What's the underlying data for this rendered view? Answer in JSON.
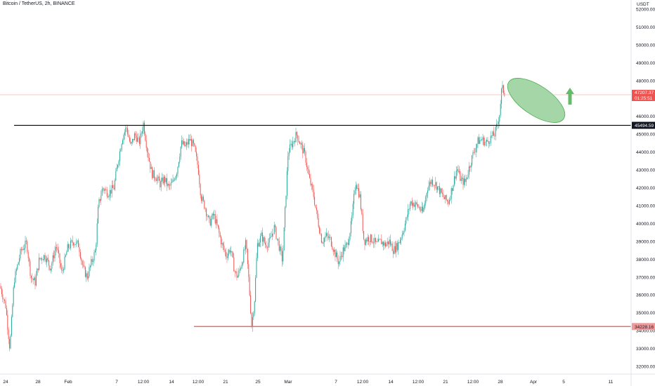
{
  "header": {
    "title": "Bitcoin / TetherUS, 2h, BINANCE"
  },
  "price_axis": {
    "unit": "USDT"
  },
  "chart_data": {
    "type": "candlestick",
    "title": "Bitcoin / TetherUS, 2h, BINANCE",
    "ylim": [
      31700,
      52300
    ],
    "y_ticks": [
      32000,
      33000,
      34000,
      35000,
      36000,
      37000,
      38000,
      39000,
      40000,
      41000,
      42000,
      43000,
      44000,
      45000,
      46000,
      47000,
      48000,
      49000,
      50000,
      51000,
      52000
    ],
    "x_tick_labels": [
      "24",
      "28",
      "Feb",
      "7",
      "12:00",
      "14",
      "12:00",
      "21",
      "25",
      "Mar",
      "7",
      "12:00",
      "14",
      "12:00",
      "21",
      "12:00",
      "28",
      "Apr",
      "5",
      "11"
    ],
    "series_path": [
      [
        0,
        36500
      ],
      [
        8,
        35400
      ],
      [
        14,
        33000
      ],
      [
        20,
        36800
      ],
      [
        30,
        38500
      ],
      [
        38,
        38900
      ],
      [
        44,
        37000
      ],
      [
        50,
        36700
      ],
      [
        56,
        38000
      ],
      [
        64,
        38200
      ],
      [
        72,
        37500
      ],
      [
        80,
        38800
      ],
      [
        88,
        37200
      ],
      [
        96,
        38600
      ],
      [
        104,
        39000
      ],
      [
        112,
        38800
      ],
      [
        118,
        37500
      ],
      [
        124,
        37000
      ],
      [
        130,
        37800
      ],
      [
        136,
        38500
      ],
      [
        140,
        41000
      ],
      [
        146,
        42000
      ],
      [
        154,
        41700
      ],
      [
        162,
        42000
      ],
      [
        168,
        43500
      ],
      [
        174,
        44800
      ],
      [
        180,
        45400
      ],
      [
        186,
        44300
      ],
      [
        192,
        45000
      ],
      [
        198,
        44500
      ],
      [
        204,
        45600
      ],
      [
        210,
        44000
      ],
      [
        216,
        42800
      ],
      [
        222,
        42600
      ],
      [
        228,
        42200
      ],
      [
        234,
        42500
      ],
      [
        240,
        42000
      ],
      [
        246,
        42300
      ],
      [
        252,
        43000
      ],
      [
        258,
        44500
      ],
      [
        264,
        44300
      ],
      [
        270,
        44700
      ],
      [
        276,
        44300
      ],
      [
        282,
        43100
      ],
      [
        286,
        41500
      ],
      [
        292,
        40900
      ],
      [
        298,
        40000
      ],
      [
        304,
        40500
      ],
      [
        310,
        39700
      ],
      [
        316,
        38800
      ],
      [
        322,
        38200
      ],
      [
        328,
        38600
      ],
      [
        334,
        37300
      ],
      [
        338,
        37000
      ],
      [
        344,
        37800
      ],
      [
        350,
        38900
      ],
      [
        354,
        36800
      ],
      [
        358,
        34300
      ],
      [
        362,
        35600
      ],
      [
        366,
        38800
      ],
      [
        372,
        39300
      ],
      [
        378,
        38800
      ],
      [
        384,
        39000
      ],
      [
        390,
        39800
      ],
      [
        396,
        38900
      ],
      [
        402,
        37900
      ],
      [
        406,
        41000
      ],
      [
        410,
        44000
      ],
      [
        416,
        44500
      ],
      [
        422,
        45000
      ],
      [
        428,
        44400
      ],
      [
        434,
        43800
      ],
      [
        440,
        42500
      ],
      [
        446,
        41600
      ],
      [
        452,
        40200
      ],
      [
        458,
        39000
      ],
      [
        464,
        39300
      ],
      [
        470,
        39100
      ],
      [
        476,
        38400
      ],
      [
        482,
        37800
      ],
      [
        488,
        38500
      ],
      [
        494,
        38800
      ],
      [
        500,
        40000
      ],
      [
        506,
        42400
      ],
      [
        512,
        41500
      ],
      [
        518,
        39000
      ],
      [
        524,
        39200
      ],
      [
        530,
        39100
      ],
      [
        536,
        38800
      ],
      [
        542,
        39000
      ],
      [
        548,
        38800
      ],
      [
        554,
        39000
      ],
      [
        560,
        38500
      ],
      [
        566,
        38800
      ],
      [
        572,
        39400
      ],
      [
        578,
        40200
      ],
      [
        584,
        41200
      ],
      [
        590,
        41100
      ],
      [
        596,
        40900
      ],
      [
        602,
        40600
      ],
      [
        608,
        42000
      ],
      [
        614,
        42400
      ],
      [
        620,
        42200
      ],
      [
        626,
        41800
      ],
      [
        632,
        41400
      ],
      [
        638,
        41200
      ],
      [
        644,
        42100
      ],
      [
        650,
        43100
      ],
      [
        656,
        42400
      ],
      [
        662,
        42300
      ],
      [
        668,
        43200
      ],
      [
        674,
        44000
      ],
      [
        680,
        44600
      ],
      [
        686,
        44700
      ],
      [
        692,
        44500
      ],
      [
        698,
        44800
      ],
      [
        704,
        45000
      ],
      [
        708,
        45600
      ],
      [
        711,
        46200
      ],
      [
        714,
        47600
      ],
      [
        718,
        47300
      ]
    ],
    "seed": 7,
    "overlays": {
      "current_price_line": {
        "value": 47207.37,
        "label": "47207.37",
        "countdown": "01:25:51"
      },
      "resistance_line": {
        "value": 45494.59,
        "label": "45494.59"
      },
      "support_line": {
        "value": 34228.16,
        "label": "34228.16"
      },
      "target_ellipse": {
        "color": "#a5d6a7",
        "stroke": "#4caf50"
      },
      "up_arrow": {
        "color": "#66bb6a",
        "icon": "up-arrow-icon"
      }
    },
    "colors": {
      "up": "#26a69a",
      "down": "#ef5350",
      "resistance": "#000000",
      "support": "#e57373",
      "price_line": "#f4b8b8"
    }
  }
}
